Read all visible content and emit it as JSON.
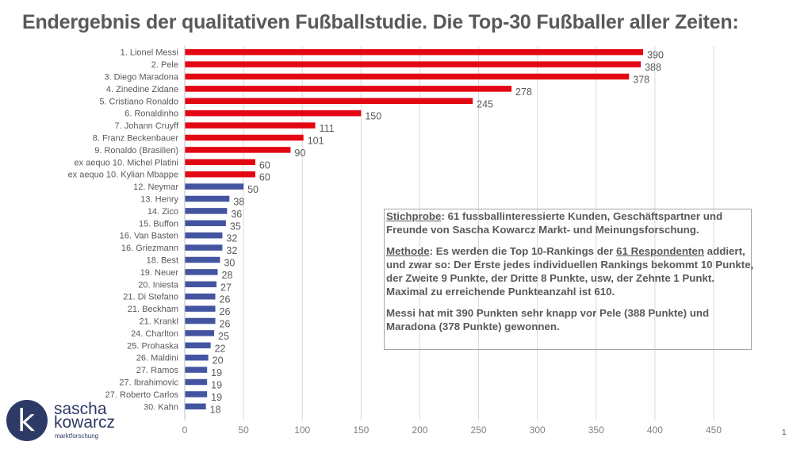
{
  "title": "Endergebnis der qualitativen Fußballstudie. Die Top-30 Fußballer aller Zeiten:",
  "info": {
    "sample_label": "Stichprobe",
    "sample_text": ": 61 fussballinteressierte Kunden, Geschäftspartner und Freunde von Sascha Kowarcz Markt- und Meinungsforschung.",
    "method_label": "Methode",
    "method_text_1": ": Es werden die Top 10-Rankings der ",
    "method_link": "61 Respondenten",
    "method_text_2": " addiert, und zwar so: Der Erste jedes individuellen Rankings bekommt 10 Punkte, der Zweite 9 Punkte, der Dritte 8 Punkte, usw, der Zehnte 1 Punkt. Maximal zu erreichende Punkteanzahl ist 610.",
    "result_text": "Messi hat mit 390 Punkten sehr knapp vor Pele (388 Punkte) und Maradona (378 Punkte) gewonnen."
  },
  "logo": {
    "letter": "k",
    "name_line1": "sascha",
    "name_line2": "kowarcz",
    "subtitle": "marktforschung"
  },
  "page_number": "1",
  "colors": {
    "top": "#e30613",
    "rest": "#4355a0",
    "grid": "#d9d9d9",
    "text": "#595959"
  },
  "chart_data": {
    "type": "bar",
    "orientation": "horizontal",
    "xlim": [
      0,
      450
    ],
    "ticks": [
      0,
      50,
      100,
      150,
      200,
      250,
      300,
      350,
      400,
      450
    ],
    "grid": true,
    "highlight_top_n": 11,
    "categories": [
      "1. Lionel Messi",
      "2. Pele",
      "3. Diego Maradona",
      "4. Zinedine Zidane",
      "5. Cristiano Ronaldo",
      "6. Ronaldinho",
      "7. Johann Cruyff",
      "8. Franz Beckenbauer",
      "9. Ronaldo (Brasilien)",
      "ex aequo 10. Michel Platini",
      "ex aequo 10. Kylian Mbappe",
      "12. Neymar",
      "13. Henry",
      "14. Zico",
      "15. Buffon",
      "16. Van Basten",
      "16. Griezmann",
      "18. Best",
      "19. Neuer",
      "20. Iniesta",
      "21. Di Stefano",
      "21. Beckham",
      "21. Krankl",
      "24. Charlton",
      "25. Prohaska",
      "26. Maldini",
      "27. Ramos",
      "27. Ibrahimovic",
      "27. Roberto Carlos",
      "30. Kahn"
    ],
    "values": [
      390,
      388,
      378,
      278,
      245,
      150,
      111,
      101,
      90,
      60,
      60,
      50,
      38,
      36,
      35,
      32,
      32,
      30,
      28,
      27,
      26,
      26,
      26,
      25,
      22,
      20,
      19,
      19,
      19,
      18
    ]
  }
}
